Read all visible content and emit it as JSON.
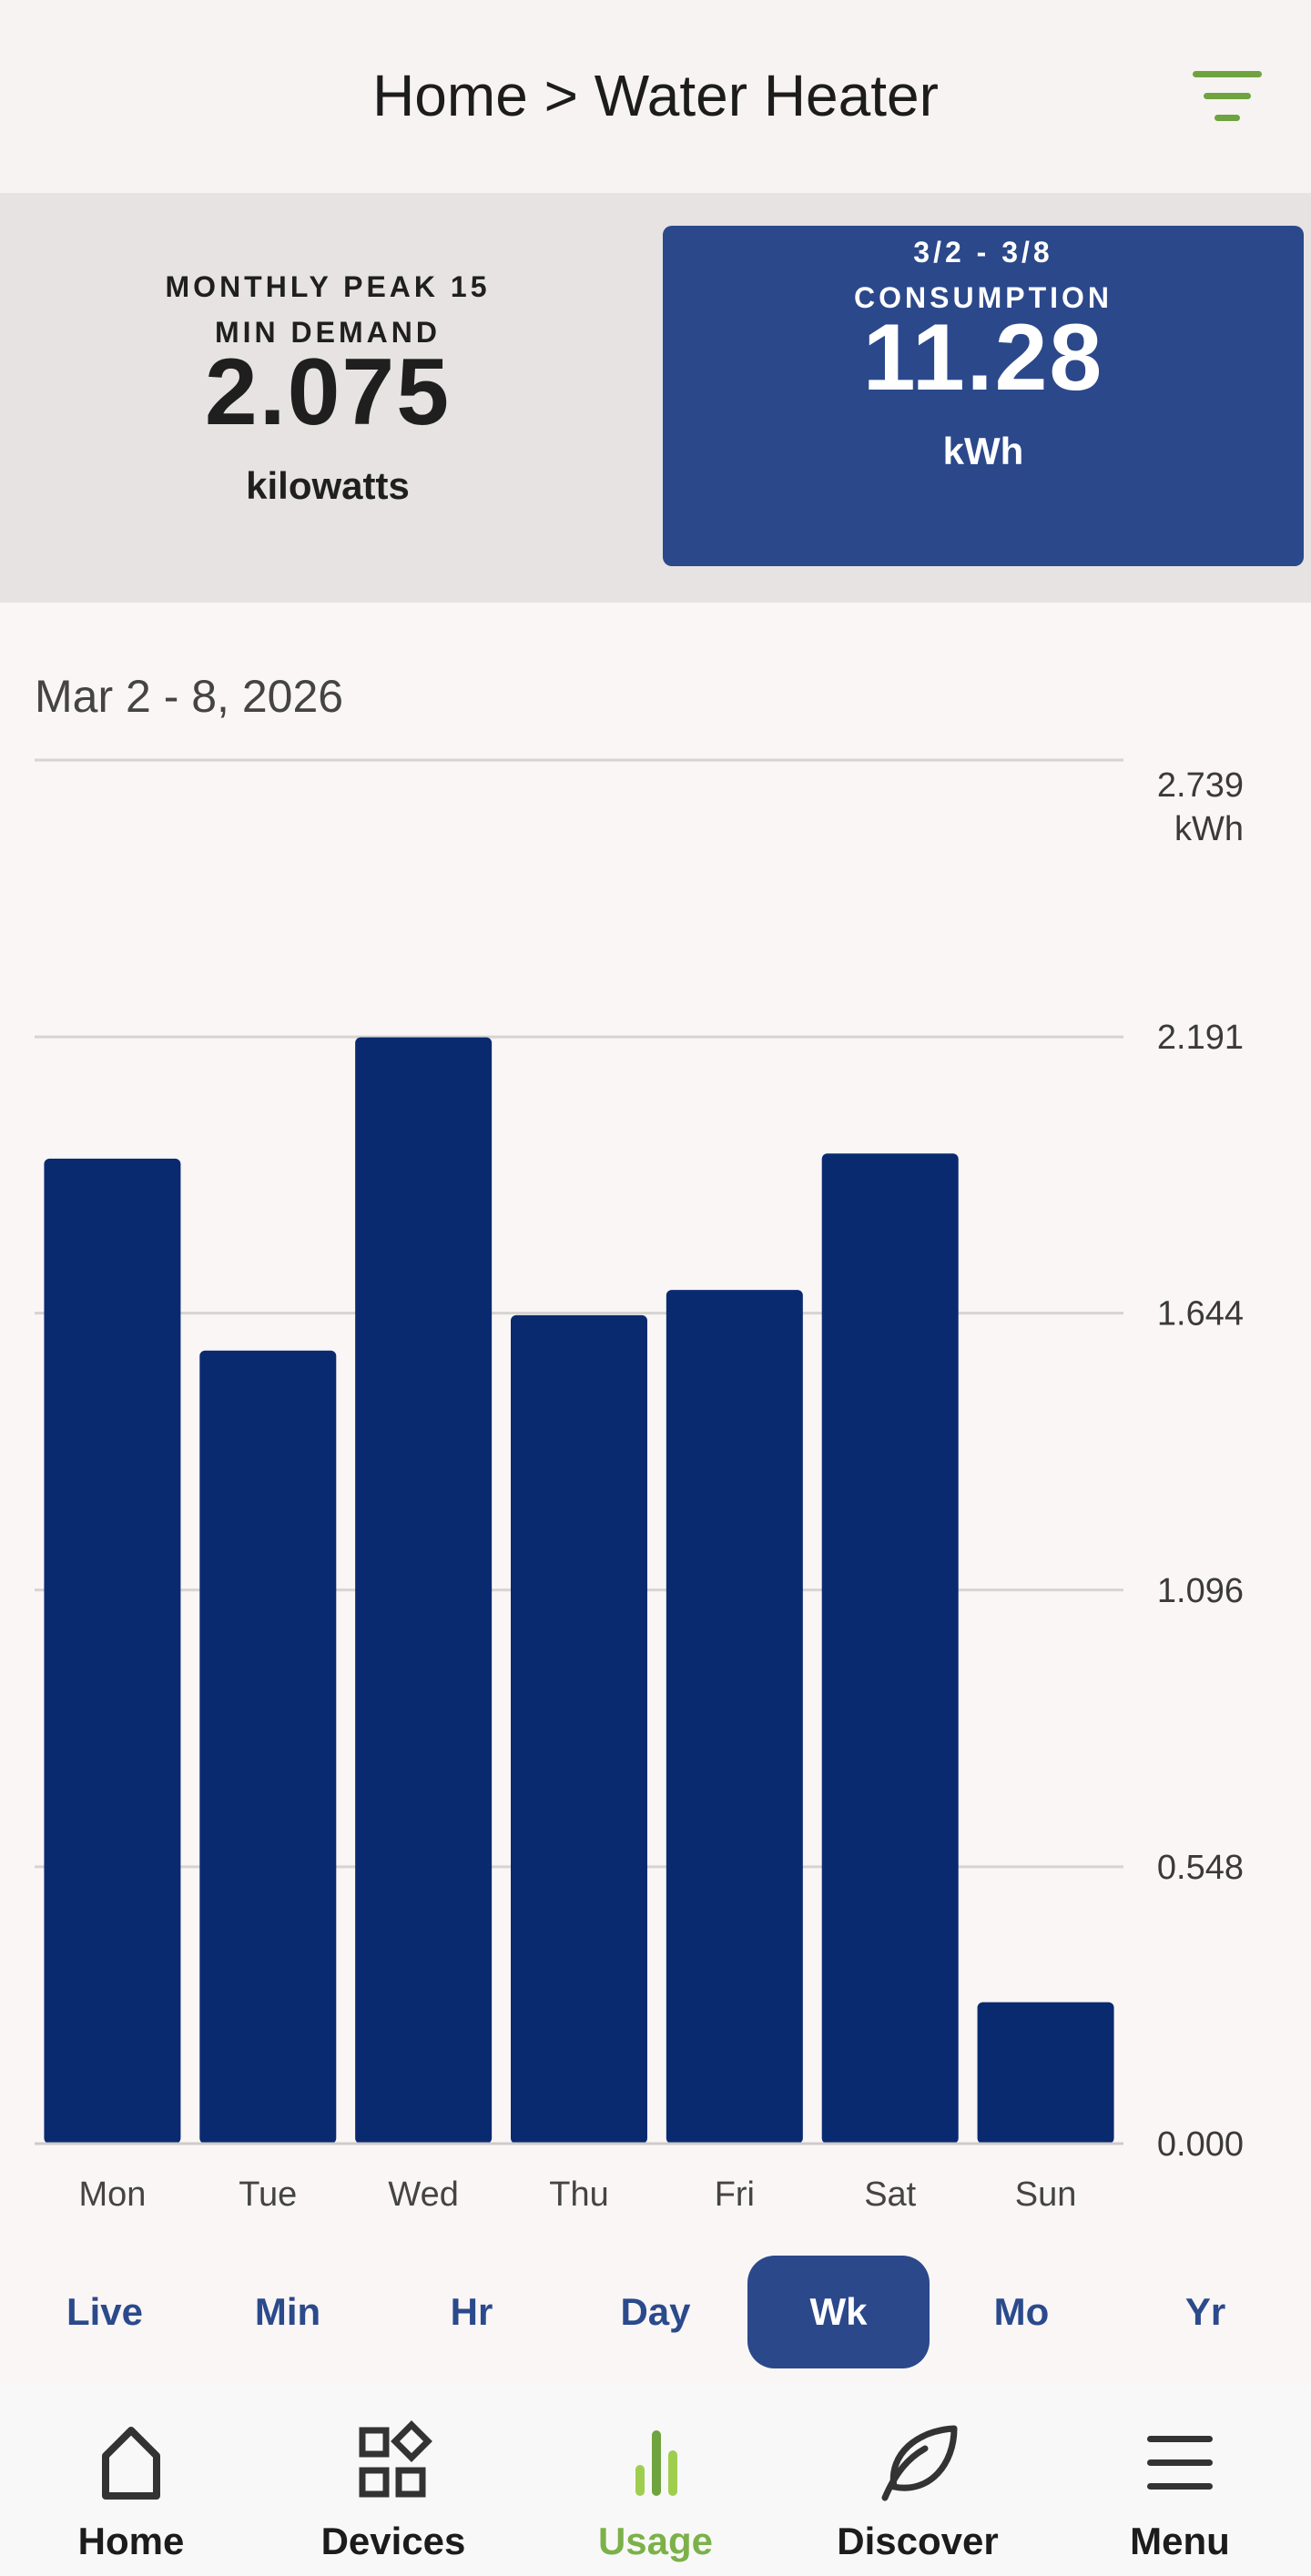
{
  "header": {
    "title": "Home > Water Heater"
  },
  "stats": {
    "demand": {
      "label_line1": "MONTHLY PEAK 15",
      "label_line2": "MIN DEMAND",
      "value": "2.075",
      "unit": "kilowatts"
    },
    "consumption": {
      "label_line1": "3/2 - 3/8",
      "label_line2": "CONSUMPTION",
      "value": "11.28",
      "unit": "kWh"
    }
  },
  "chart": {
    "date_range": "Mar 2 - 8, 2026"
  },
  "chart_data": {
    "type": "bar",
    "categories": [
      "Mon",
      "Tue",
      "Wed",
      "Thu",
      "Fri",
      "Sat",
      "Sun"
    ],
    "values": [
      1.95,
      1.57,
      2.19,
      1.64,
      1.69,
      1.96,
      0.28
    ],
    "y_ticks": [
      "0.000",
      "0.548",
      "1.096",
      "1.644",
      "2.191",
      "2.739"
    ],
    "y_unit": "kWh",
    "ylim": [
      0,
      2.739
    ],
    "grid": true,
    "bar_color": "#0a2a70"
  },
  "range_tabs": [
    {
      "label": "Live"
    },
    {
      "label": "Min"
    },
    {
      "label": "Hr"
    },
    {
      "label": "Day"
    },
    {
      "label": "Wk",
      "active": true
    },
    {
      "label": "Mo"
    },
    {
      "label": "Yr"
    }
  ],
  "nav": [
    {
      "label": "Home",
      "icon": "home-icon"
    },
    {
      "label": "Devices",
      "icon": "devices-icon"
    },
    {
      "label": "Usage",
      "icon": "usage-icon",
      "active": true
    },
    {
      "label": "Discover",
      "icon": "leaf-icon"
    },
    {
      "label": "Menu",
      "icon": "hamburger-icon"
    }
  ],
  "colors": {
    "accent_green": "#7cb14a",
    "brand_blue": "#2b488b",
    "bar_blue": "#0a2a70"
  }
}
